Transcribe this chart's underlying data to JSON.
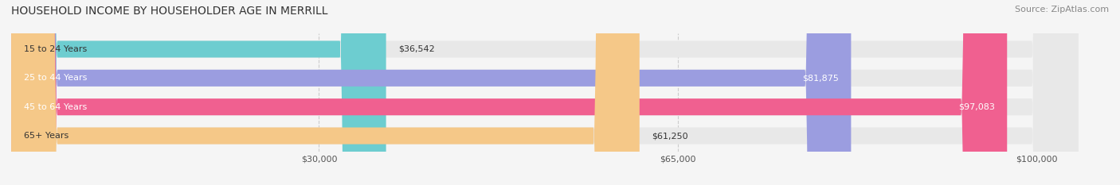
{
  "title": "HOUSEHOLD INCOME BY HOUSEHOLDER AGE IN MERRILL",
  "source": "Source: ZipAtlas.com",
  "categories": [
    "15 to 24 Years",
    "25 to 44 Years",
    "45 to 64 Years",
    "65+ Years"
  ],
  "values": [
    36542,
    81875,
    97083,
    61250
  ],
  "bar_colors": [
    "#6dcdd0",
    "#9b9de0",
    "#f06090",
    "#f5c888"
  ],
  "x_ticks": [
    30000,
    65000,
    100000
  ],
  "x_tick_labels": [
    "$30,000",
    "$65,000",
    "$100,000"
  ],
  "xlim": [
    0,
    107000
  ],
  "value_labels": [
    "$36,542",
    "$81,875",
    "$97,083",
    "$61,250"
  ],
  "background_color": "#f5f5f5",
  "bar_bg_color": "#e8e8e8",
  "title_fontsize": 10,
  "source_fontsize": 8,
  "label_fontsize": 8,
  "value_fontsize": 8,
  "tick_fontsize": 8
}
